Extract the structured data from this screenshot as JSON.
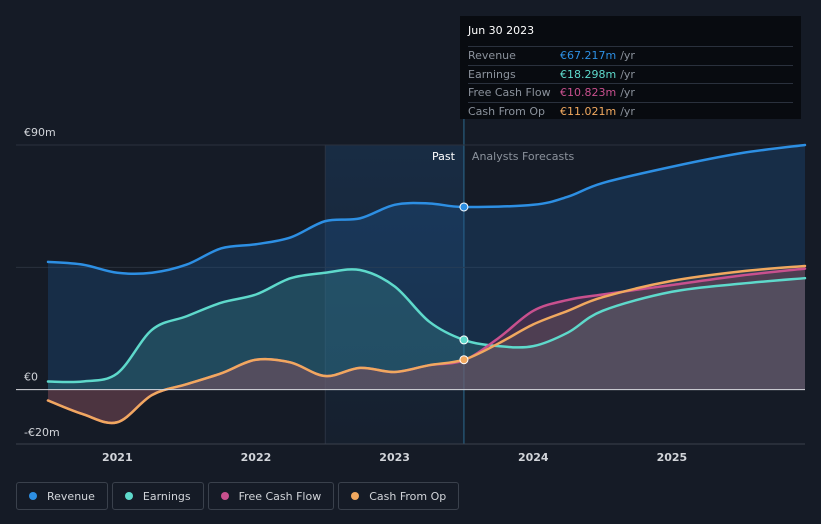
{
  "tooltip": {
    "date": "Jun 30 2023",
    "rows": [
      {
        "label": "Revenue",
        "value": "€67.217m",
        "unit": "/yr",
        "color": "#2d8fe3"
      },
      {
        "label": "Earnings",
        "value": "€18.298m",
        "unit": "/yr",
        "color": "#5ed9cb"
      },
      {
        "label": "Free Cash Flow",
        "value": "€10.823m",
        "unit": "/yr",
        "color": "#c8508e"
      },
      {
        "label": "Cash From Op",
        "value": "€11.021m",
        "unit": "/yr",
        "color": "#f0a85f"
      }
    ]
  },
  "legend": [
    {
      "label": "Revenue",
      "color": "#2d8fe3"
    },
    {
      "label": "Earnings",
      "color": "#5ed9cb"
    },
    {
      "label": "Free Cash Flow",
      "color": "#c8508e"
    },
    {
      "label": "Cash From Op",
      "color": "#f0a85f"
    }
  ],
  "chart_data": {
    "type": "line",
    "title": "",
    "xlabel": "",
    "ylabel": "",
    "ylim": [
      -20,
      90
    ],
    "xlim": [
      2020.5,
      2025.96
    ],
    "xticks": [
      2021,
      2022,
      2023,
      2024,
      2025
    ],
    "xtick_labels": [
      "2021",
      "2022",
      "2023",
      "2024",
      "2025"
    ],
    "yticks": [
      90,
      0,
      -20
    ],
    "ytick_labels": [
      "€90m",
      "€0",
      "-€20m"
    ],
    "divider_x": 2023.5,
    "past_label": "Past",
    "forecast_label": "Analysts Forecasts",
    "highlight_start": 2022.5,
    "series": [
      {
        "name": "Revenue",
        "color": "#2d8fe3",
        "x": [
          2020.5,
          2020.75,
          2021.0,
          2021.25,
          2021.5,
          2021.75,
          2022.0,
          2022.25,
          2022.5,
          2022.75,
          2023.0,
          2023.25,
          2023.5,
          2024.0,
          2024.25,
          2024.5,
          2025.0,
          2025.5,
          2025.96
        ],
        "y": [
          47,
          46,
          43,
          43,
          46,
          52,
          53.5,
          56,
          62,
          63,
          68,
          68.5,
          67.2,
          68,
          71,
          76,
          82,
          87,
          90
        ]
      },
      {
        "name": "Earnings",
        "color": "#5ed9cb",
        "x": [
          2020.5,
          2020.75,
          2021.0,
          2021.25,
          2021.5,
          2021.75,
          2022.0,
          2022.25,
          2022.5,
          2022.75,
          2023.0,
          2023.25,
          2023.5,
          2023.75,
          2024.0,
          2024.25,
          2024.5,
          2025.0,
          2025.5,
          2025.96
        ],
        "y": [
          3,
          3,
          6,
          22,
          27,
          32,
          35,
          41,
          43,
          44,
          38,
          25,
          18.3,
          16,
          16,
          21,
          29,
          36,
          39,
          41
        ]
      },
      {
        "name": "Free Cash Flow",
        "color": "#c8508e",
        "x": [
          2020.5,
          2020.75,
          2021.0,
          2021.25,
          2021.5,
          2021.75,
          2022.0,
          2022.25,
          2022.5,
          2022.75,
          2023.0,
          2023.25,
          2023.5,
          2023.75,
          2024.0,
          2024.25,
          2024.5,
          2025.0,
          2025.5,
          2025.96
        ],
        "y": [
          -4,
          -9,
          -12,
          -2,
          2,
          6,
          11,
          10,
          5,
          8,
          6.5,
          9,
          10.8,
          19,
          29,
          33,
          35,
          38.5,
          42,
          44.5
        ]
      },
      {
        "name": "Cash From Op",
        "color": "#f0a85f",
        "x": [
          2020.5,
          2020.75,
          2021.0,
          2021.25,
          2021.5,
          2021.75,
          2022.0,
          2022.25,
          2022.5,
          2022.75,
          2023.0,
          2023.25,
          2023.5,
          2023.75,
          2024.0,
          2024.25,
          2024.5,
          2025.0,
          2025.5,
          2025.96
        ],
        "y": [
          -4,
          -9,
          -12,
          -2,
          2,
          6,
          11,
          10,
          5,
          8,
          6.5,
          9,
          11,
          17,
          24,
          29,
          34,
          40,
          43.5,
          45.5
        ]
      }
    ]
  }
}
